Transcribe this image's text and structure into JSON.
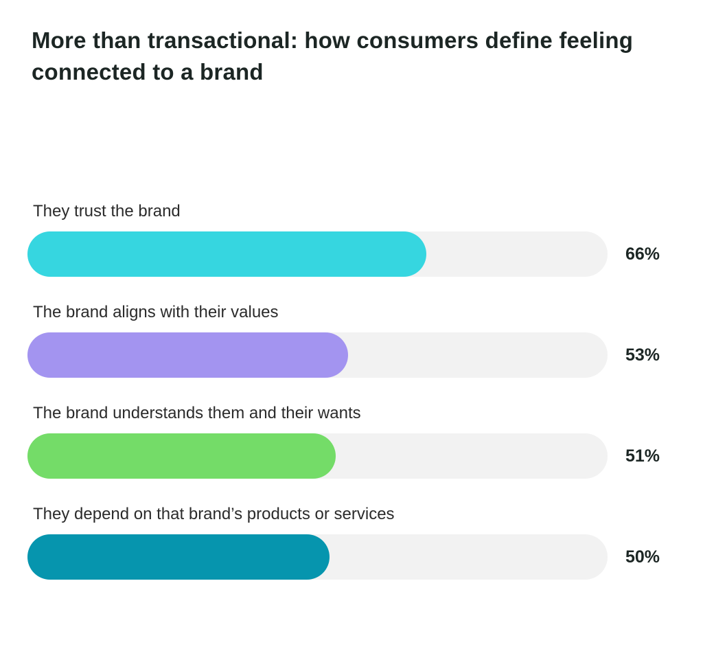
{
  "chart_data": {
    "type": "bar",
    "orientation": "horizontal",
    "title": "More than transactional: how consumers define feeling connected to a brand",
    "categories": [
      "They trust the brand",
      "The brand aligns with their values",
      "The brand understands them and their wants",
      "They depend on that brand’s products or services"
    ],
    "values": [
      66,
      53,
      51,
      50
    ],
    "value_labels": [
      "66%",
      "53%",
      "51%",
      "50%"
    ],
    "colors": [
      "#36d6e0",
      "#a394f0",
      "#74dc68",
      "#0695ae"
    ],
    "track_color": "#f2f2f2",
    "scale_max": 96,
    "xlabel": "",
    "ylabel": "",
    "grid": false,
    "legend": "none"
  }
}
